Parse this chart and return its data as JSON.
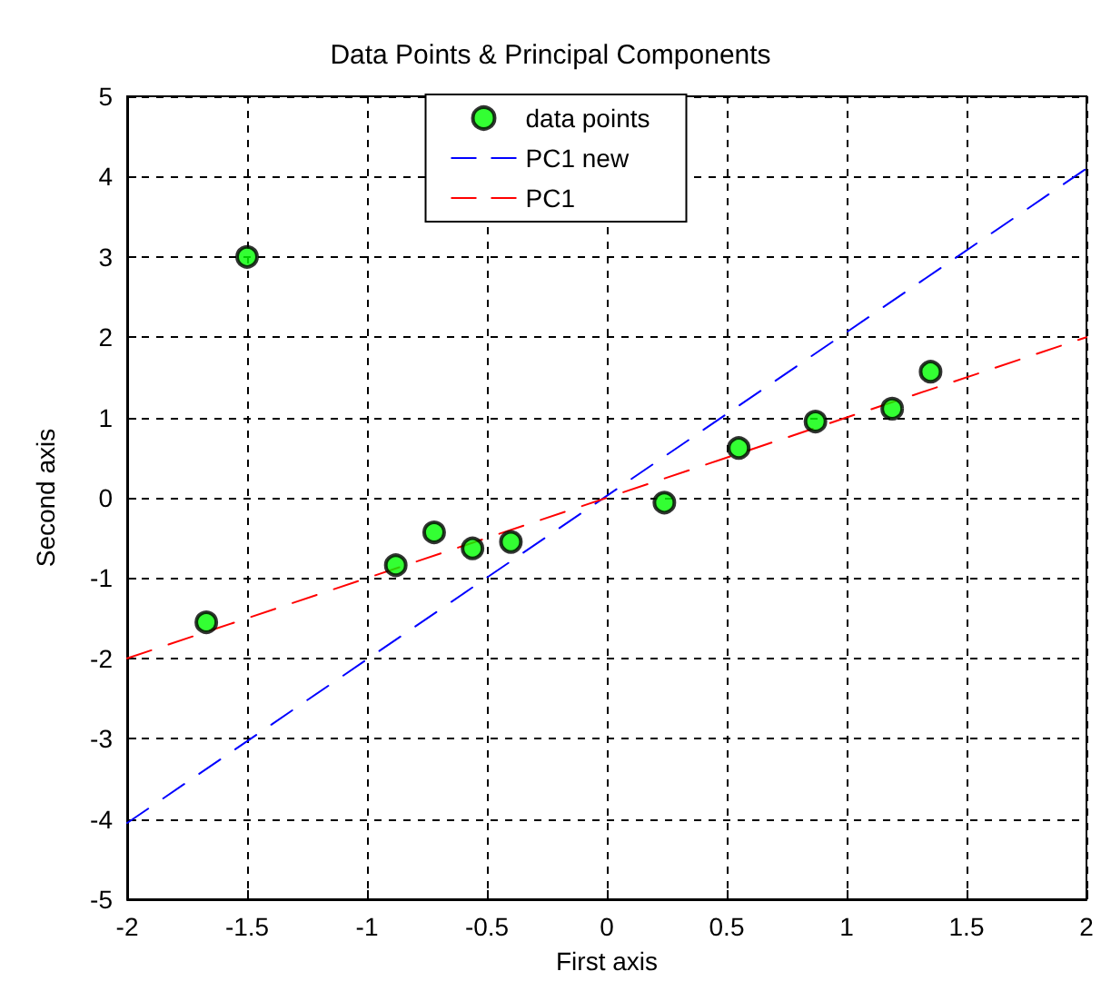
{
  "chart_data": {
    "type": "scatter",
    "title": "Data Points & Principal Components",
    "xlabel": "First axis",
    "ylabel": "Second axis",
    "xlim": [
      -2,
      2
    ],
    "xticks": [
      -2,
      -1.5,
      -1,
      -0.5,
      0,
      0.5,
      1,
      1.5,
      2
    ],
    "ylim": [
      -5,
      5
    ],
    "yticks": [
      -5,
      -4,
      -3,
      -2,
      -1,
      0,
      1,
      2,
      3,
      4,
      5
    ],
    "grid": true,
    "legend": "top",
    "series": [
      {
        "name": "data points",
        "color": "#00ff00",
        "marker": "circle",
        "x": [
          -1.67,
          -1.5,
          -0.88,
          -0.72,
          -0.56,
          -0.4,
          0.24,
          0.55,
          0.87,
          1.19,
          1.35
        ],
        "values": [
          -1.55,
          3.0,
          -0.84,
          -0.43,
          -0.63,
          -0.55,
          -0.06,
          0.62,
          0.95,
          1.11,
          1.57
        ]
      },
      {
        "name": "PC1 new",
        "type": "line",
        "color": "#0000ff",
        "line_style": "dashed",
        "marker": "none",
        "x": [
          -2,
          2
        ],
        "values": [
          -4.05,
          4.1
        ]
      },
      {
        "name": "PC1",
        "type": "line",
        "color": "#ff0000",
        "line_style": "dashed",
        "marker": "none",
        "x": [
          -2,
          2
        ],
        "values": [
          -2,
          2
        ]
      }
    ]
  }
}
